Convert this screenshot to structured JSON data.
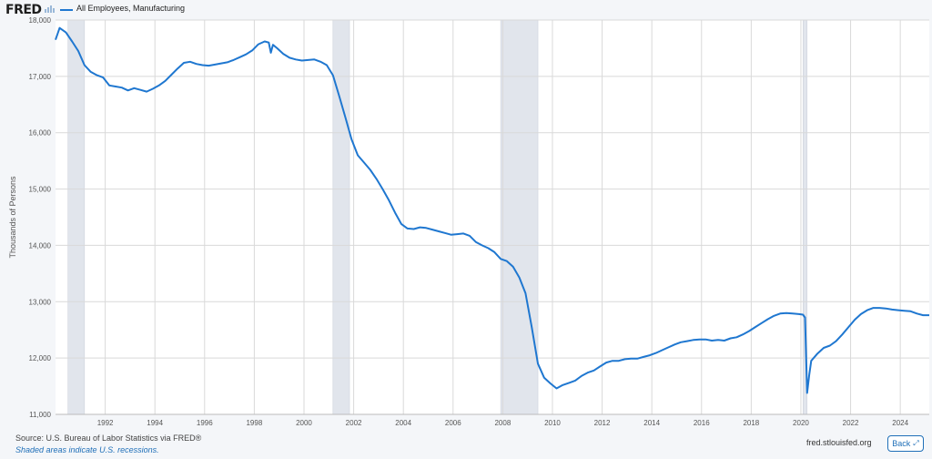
{
  "header": {
    "logo_text": "FRED",
    "logo_icon": "chart-bars-icon"
  },
  "colors": {
    "series": "#1f77d0",
    "recession": "#e1e5ec",
    "grid": "#d9d9d9",
    "plot_bg": "#ffffff"
  },
  "chart_data": {
    "type": "line",
    "title": "",
    "xlabel": "",
    "ylabel": "Thousands of Persons",
    "ylim": [
      11000,
      18000
    ],
    "xlim": [
      "1990-01",
      "2025-03"
    ],
    "y_ticks": [
      "11,000",
      "12,000",
      "13,000",
      "14,000",
      "15,000",
      "16,000",
      "17,000",
      "18,000"
    ],
    "x_ticks": [
      "1992",
      "1994",
      "1996",
      "1998",
      "2000",
      "2002",
      "2004",
      "2006",
      "2008",
      "2010",
      "2012",
      "2014",
      "2016",
      "2018",
      "2020",
      "2022",
      "2024"
    ],
    "grid": true,
    "legend_position": "top-left",
    "recessions": [
      {
        "start": "1990-07",
        "end": "1991-03"
      },
      {
        "start": "2001-03",
        "end": "2001-11"
      },
      {
        "start": "2007-12",
        "end": "2009-06"
      },
      {
        "start": "2020-02",
        "end": "2020-04"
      }
    ],
    "series": [
      {
        "name": "All Employees, Manufacturing",
        "points": [
          [
            "1990-01",
            17650
          ],
          [
            "1990-03",
            17860
          ],
          [
            "1990-06",
            17780
          ],
          [
            "1990-09",
            17620
          ],
          [
            "1990-12",
            17450
          ],
          [
            "1991-03",
            17200
          ],
          [
            "1991-06",
            17080
          ],
          [
            "1991-09",
            17020
          ],
          [
            "1991-12",
            16980
          ],
          [
            "1992-03",
            16840
          ],
          [
            "1992-06",
            16820
          ],
          [
            "1992-09",
            16800
          ],
          [
            "1992-12",
            16750
          ],
          [
            "1993-03",
            16790
          ],
          [
            "1993-06",
            16760
          ],
          [
            "1993-09",
            16730
          ],
          [
            "1993-12",
            16780
          ],
          [
            "1994-03",
            16840
          ],
          [
            "1994-06",
            16920
          ],
          [
            "1994-09",
            17030
          ],
          [
            "1994-12",
            17140
          ],
          [
            "1995-03",
            17240
          ],
          [
            "1995-06",
            17260
          ],
          [
            "1995-09",
            17220
          ],
          [
            "1995-12",
            17200
          ],
          [
            "1996-03",
            17190
          ],
          [
            "1996-06",
            17210
          ],
          [
            "1996-09",
            17230
          ],
          [
            "1996-12",
            17250
          ],
          [
            "1997-03",
            17290
          ],
          [
            "1997-06",
            17340
          ],
          [
            "1997-09",
            17390
          ],
          [
            "1997-12",
            17460
          ],
          [
            "1998-03",
            17570
          ],
          [
            "1998-06",
            17620
          ],
          [
            "1998-08",
            17600
          ],
          [
            "1998-09",
            17420
          ],
          [
            "1998-10",
            17560
          ],
          [
            "1998-12",
            17500
          ],
          [
            "1999-03",
            17400
          ],
          [
            "1999-06",
            17330
          ],
          [
            "1999-09",
            17300
          ],
          [
            "1999-12",
            17280
          ],
          [
            "2000-03",
            17290
          ],
          [
            "2000-06",
            17300
          ],
          [
            "2000-09",
            17260
          ],
          [
            "2000-12",
            17200
          ],
          [
            "2001-03",
            17020
          ],
          [
            "2001-06",
            16650
          ],
          [
            "2001-09",
            16270
          ],
          [
            "2001-12",
            15880
          ],
          [
            "2002-03",
            15600
          ],
          [
            "2002-06",
            15470
          ],
          [
            "2002-09",
            15340
          ],
          [
            "2002-12",
            15180
          ],
          [
            "2003-03",
            15000
          ],
          [
            "2003-06",
            14800
          ],
          [
            "2003-09",
            14580
          ],
          [
            "2003-12",
            14380
          ],
          [
            "2004-03",
            14300
          ],
          [
            "2004-06",
            14290
          ],
          [
            "2004-09",
            14320
          ],
          [
            "2004-12",
            14310
          ],
          [
            "2005-03",
            14280
          ],
          [
            "2005-06",
            14250
          ],
          [
            "2005-09",
            14220
          ],
          [
            "2005-12",
            14190
          ],
          [
            "2006-03",
            14200
          ],
          [
            "2006-06",
            14210
          ],
          [
            "2006-09",
            14170
          ],
          [
            "2006-12",
            14060
          ],
          [
            "2007-03",
            14000
          ],
          [
            "2007-06",
            13950
          ],
          [
            "2007-09",
            13880
          ],
          [
            "2007-12",
            13760
          ],
          [
            "2008-03",
            13720
          ],
          [
            "2008-06",
            13620
          ],
          [
            "2008-09",
            13430
          ],
          [
            "2008-12",
            13150
          ],
          [
            "2009-03",
            12550
          ],
          [
            "2009-06",
            11900
          ],
          [
            "2009-09",
            11650
          ],
          [
            "2009-12",
            11550
          ],
          [
            "2010-03",
            11460
          ],
          [
            "2010-06",
            11520
          ],
          [
            "2010-09",
            11560
          ],
          [
            "2010-12",
            11600
          ],
          [
            "2011-03",
            11680
          ],
          [
            "2011-06",
            11740
          ],
          [
            "2011-09",
            11780
          ],
          [
            "2011-12",
            11850
          ],
          [
            "2012-03",
            11920
          ],
          [
            "2012-06",
            11950
          ],
          [
            "2012-09",
            11950
          ],
          [
            "2012-12",
            11980
          ],
          [
            "2013-03",
            11990
          ],
          [
            "2013-06",
            11990
          ],
          [
            "2013-09",
            12020
          ],
          [
            "2013-12",
            12050
          ],
          [
            "2014-03",
            12090
          ],
          [
            "2014-06",
            12140
          ],
          [
            "2014-09",
            12190
          ],
          [
            "2014-12",
            12240
          ],
          [
            "2015-03",
            12280
          ],
          [
            "2015-06",
            12300
          ],
          [
            "2015-09",
            12320
          ],
          [
            "2015-12",
            12330
          ],
          [
            "2016-03",
            12330
          ],
          [
            "2016-06",
            12310
          ],
          [
            "2016-09",
            12320
          ],
          [
            "2016-12",
            12310
          ],
          [
            "2017-03",
            12350
          ],
          [
            "2017-06",
            12370
          ],
          [
            "2017-09",
            12420
          ],
          [
            "2017-12",
            12480
          ],
          [
            "2018-03",
            12550
          ],
          [
            "2018-06",
            12620
          ],
          [
            "2018-09",
            12690
          ],
          [
            "2018-12",
            12750
          ],
          [
            "2019-03",
            12790
          ],
          [
            "2019-06",
            12800
          ],
          [
            "2019-09",
            12790
          ],
          [
            "2019-12",
            12780
          ],
          [
            "2020-02",
            12770
          ],
          [
            "2020-03",
            12720
          ],
          [
            "2020-04",
            11380
          ],
          [
            "2020-05",
            11700
          ],
          [
            "2020-06",
            11950
          ],
          [
            "2020-09",
            12080
          ],
          [
            "2020-12",
            12180
          ],
          [
            "2021-03",
            12220
          ],
          [
            "2021-06",
            12300
          ],
          [
            "2021-09",
            12420
          ],
          [
            "2021-12",
            12550
          ],
          [
            "2022-03",
            12680
          ],
          [
            "2022-06",
            12780
          ],
          [
            "2022-09",
            12850
          ],
          [
            "2022-12",
            12890
          ],
          [
            "2023-03",
            12890
          ],
          [
            "2023-06",
            12880
          ],
          [
            "2023-09",
            12860
          ],
          [
            "2023-12",
            12850
          ],
          [
            "2024-03",
            12840
          ],
          [
            "2024-06",
            12830
          ],
          [
            "2024-09",
            12790
          ],
          [
            "2024-12",
            12760
          ],
          [
            "2025-03",
            12760
          ]
        ]
      }
    ]
  },
  "footer": {
    "source": "Source: U.S. Bureau of Labor Statistics via FRED®",
    "note": "Shaded areas indicate U.S. recessions.",
    "site": "fred.stlouisfed.org",
    "back_label": "Back",
    "back_icon": "expand-arrows-icon"
  }
}
